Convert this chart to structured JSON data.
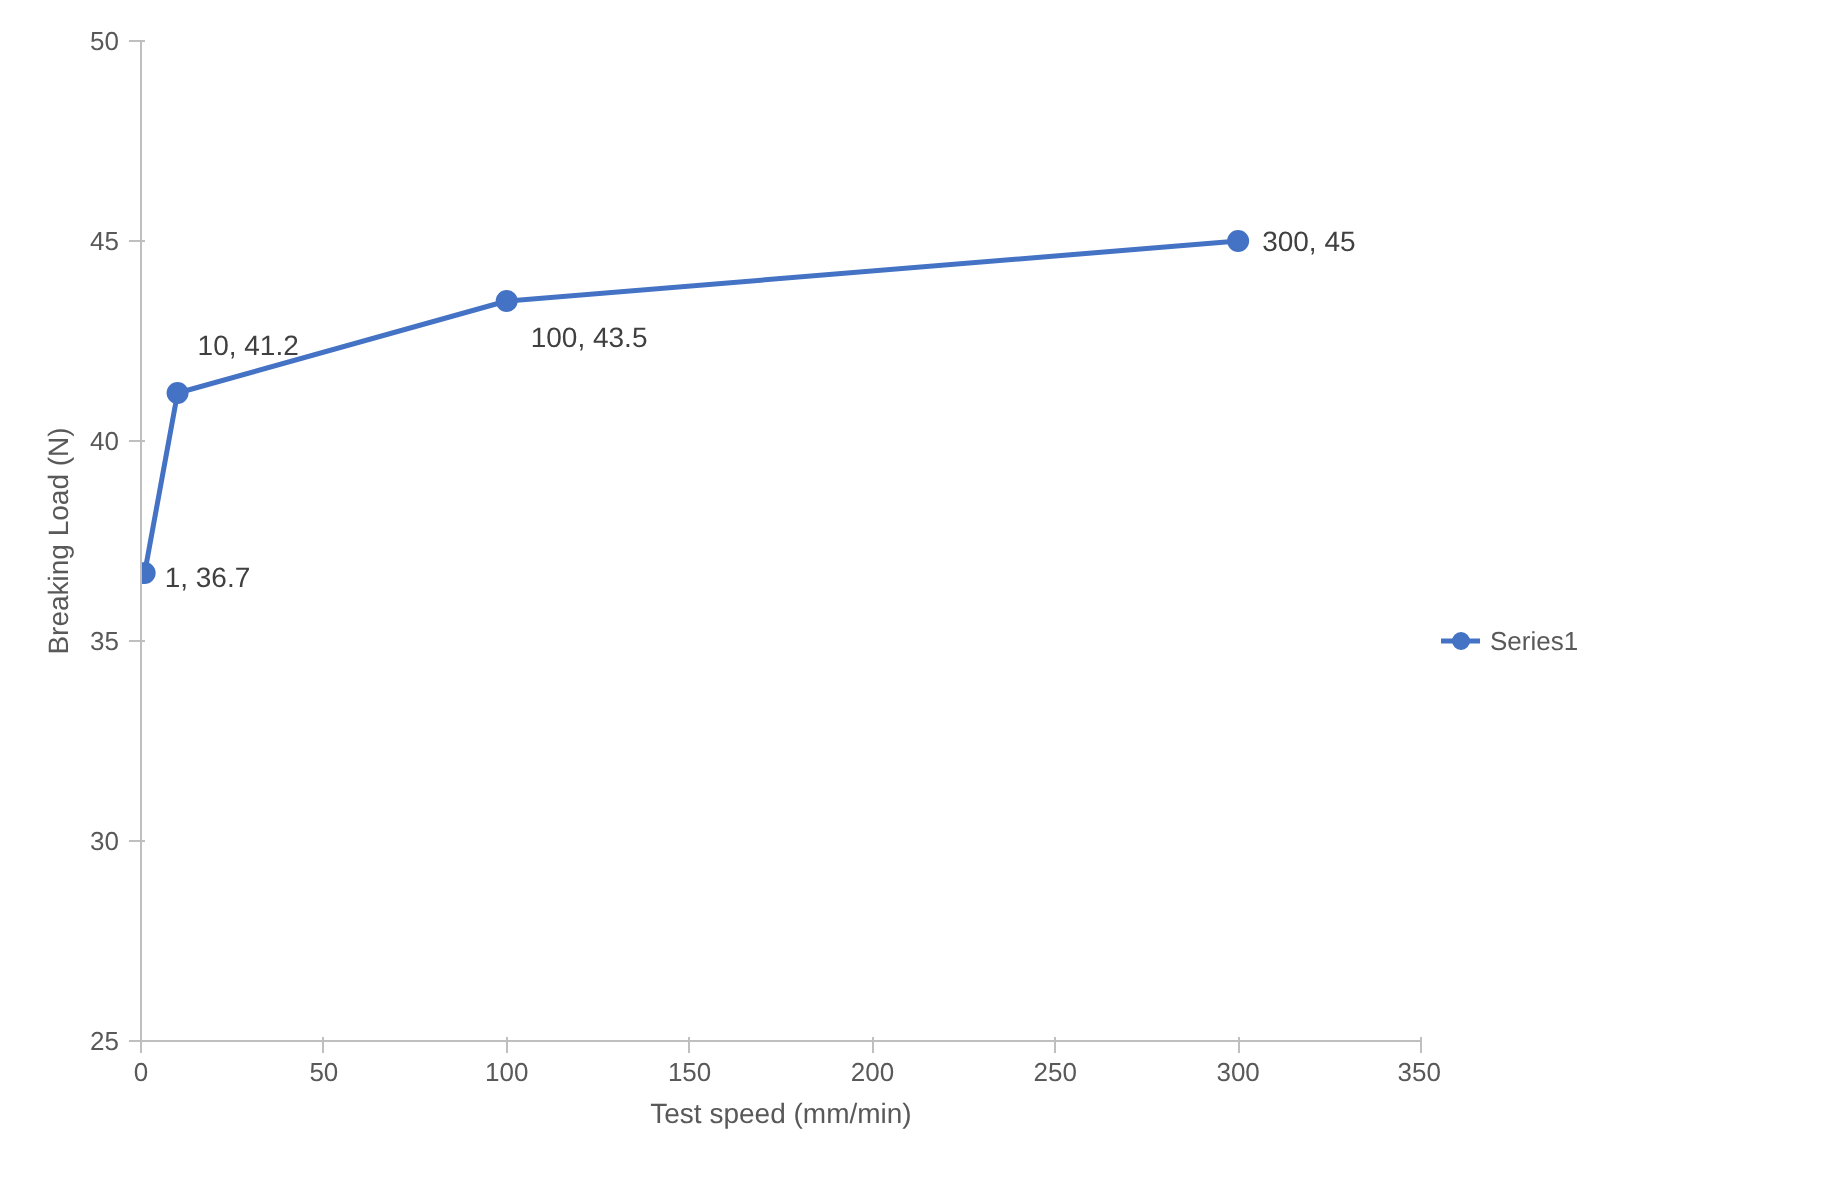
{
  "chart_data": {
    "type": "line",
    "xlabel": "Test speed (mm/min)",
    "ylabel": "Breaking Load (N)",
    "x": [
      1,
      10,
      100,
      300
    ],
    "series": [
      {
        "name": "Series1",
        "color": "#4472c4",
        "values": [
          36.7,
          41.2,
          43.5,
          45
        ],
        "value_labels": [
          "1, 36.7",
          "10, 41.2",
          "100, 43.5",
          "300, 45"
        ]
      }
    ],
    "xlim": [
      0,
      350
    ],
    "xticks": [
      0,
      50,
      100,
      150,
      200,
      250,
      300,
      350
    ],
    "ylim": [
      25,
      50
    ],
    "yticks": [
      25,
      30,
      35,
      40,
      45,
      50
    ],
    "grid": false,
    "legend": "right",
    "marker": "circle",
    "line_style": "solid"
  }
}
